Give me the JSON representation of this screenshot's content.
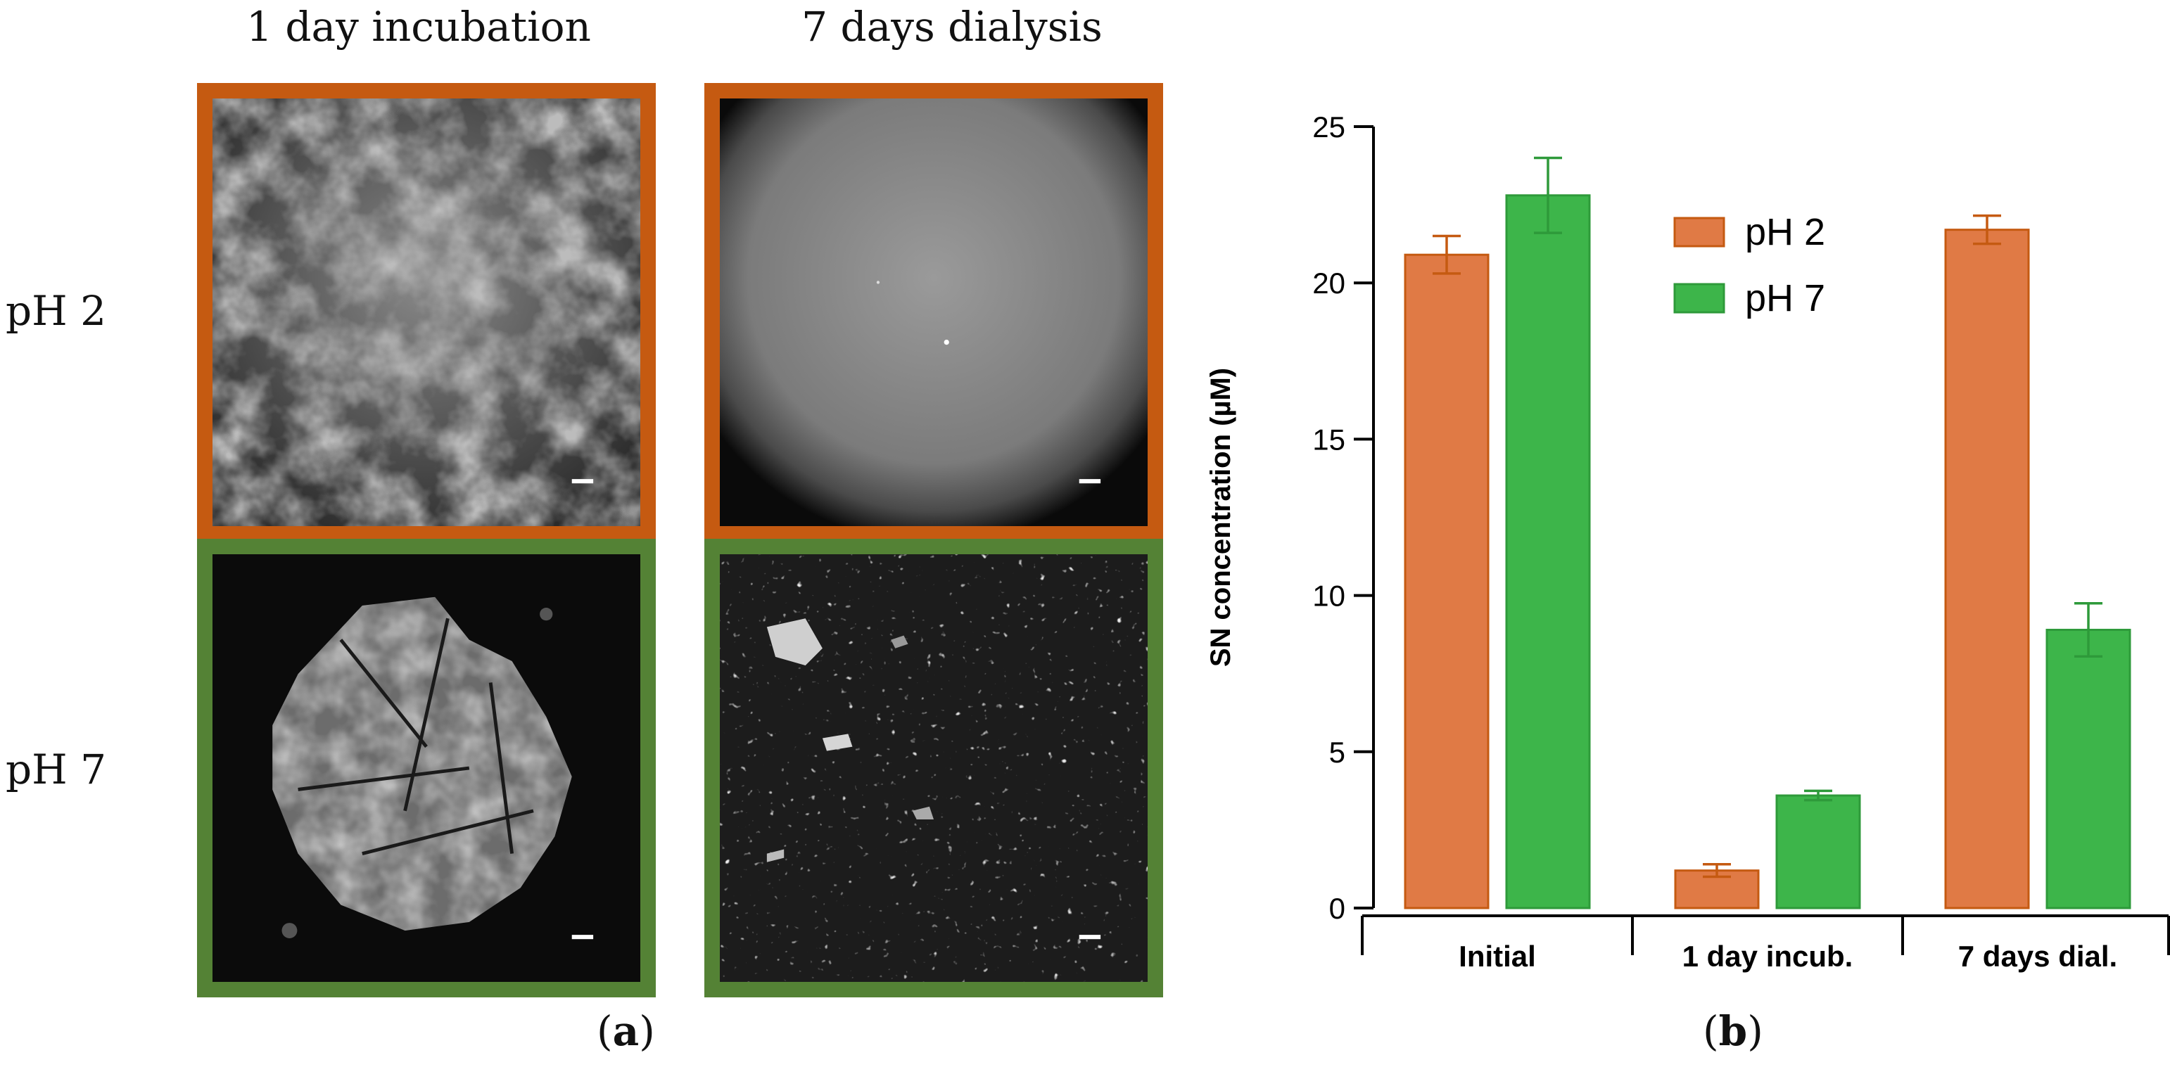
{
  "panel_a": {
    "column_headers": [
      "1 day incubation",
      "7 days dialysis"
    ],
    "row_headers": [
      "pH 2",
      "pH 7"
    ],
    "label_open": "(",
    "label_letter": "a",
    "label_close": ")",
    "border_colors": {
      "pH 2": "#C55A11",
      "pH 7": "#548235"
    }
  },
  "panel_b": {
    "label_open": "(",
    "label_letter": "b",
    "label_close": ")"
  },
  "chart_data": {
    "type": "bar",
    "categories": [
      "Initial",
      "1 day incub.",
      "7 days dial."
    ],
    "ylabel": "SN concentration (µM)",
    "ylim": [
      0,
      25
    ],
    "yticks": [
      0,
      5,
      10,
      15,
      20,
      25
    ],
    "grid": false,
    "legend": "top-center",
    "series": [
      {
        "name": "pH 2",
        "color": "#E07A45",
        "edge": "#C55A11",
        "values": [
          20.9,
          1.2,
          21.7
        ],
        "errors": [
          0.6,
          0.2,
          0.45
        ]
      },
      {
        "name": "pH 7",
        "color": "#3DB54A",
        "edge": "#2E9A3A",
        "values": [
          22.8,
          3.6,
          8.9
        ],
        "errors": [
          1.2,
          0.15,
          0.85
        ]
      }
    ]
  }
}
